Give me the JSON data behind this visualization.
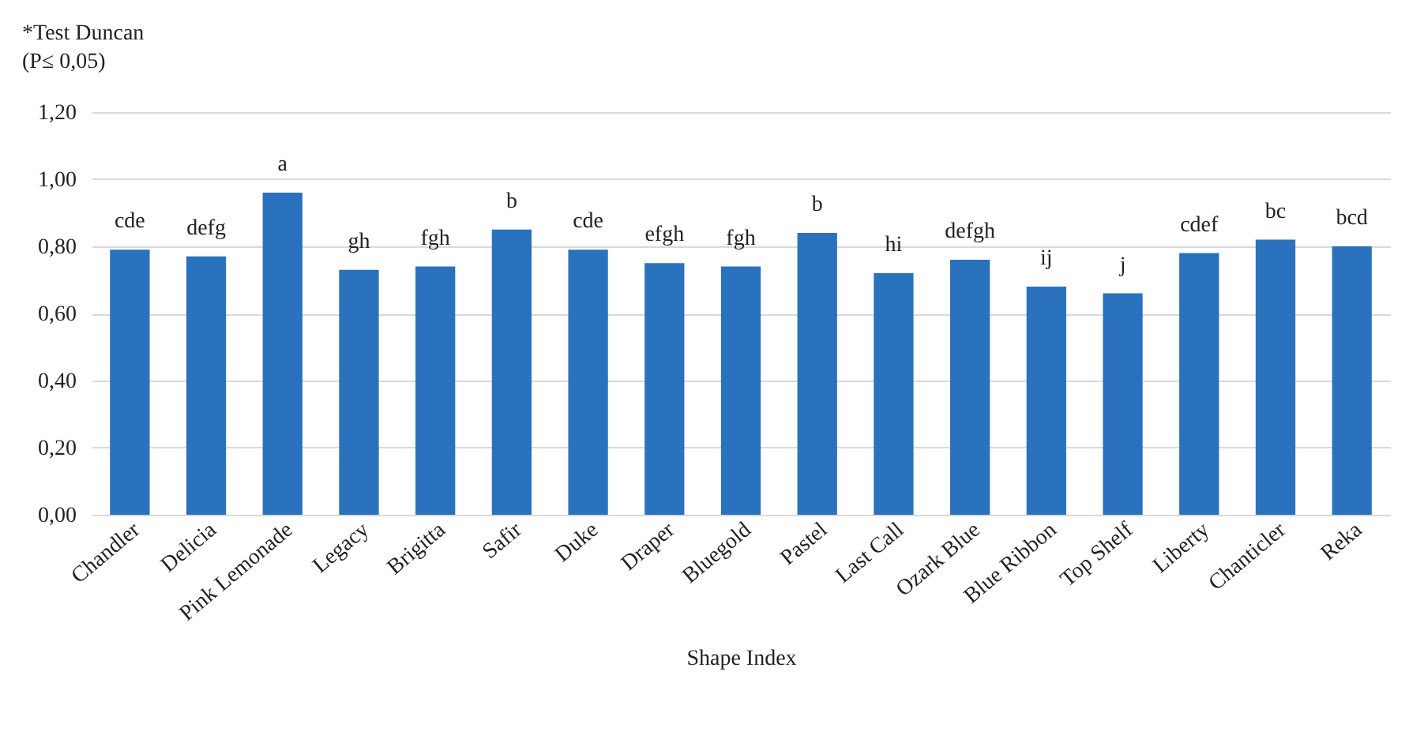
{
  "chart_data": {
    "type": "bar",
    "xlabel": "Shape Index",
    "annotations": [
      "*Test Duncan",
      "(P≤ 0,05)"
    ],
    "categories": [
      "Chandler",
      "Delicia",
      "Pink Lemonade",
      "Legacy",
      "Brigitta",
      "Safir",
      "Duke",
      "Draper",
      "Bluegold",
      "Pastel",
      "Last Call",
      "Ozark Blue",
      "Blue Ribbon",
      "Top Shelf",
      "Liberty",
      "Chanticler",
      "Reka"
    ],
    "values": [
      0.79,
      0.77,
      0.96,
      0.73,
      0.74,
      0.85,
      0.79,
      0.75,
      0.74,
      0.84,
      0.72,
      0.76,
      0.68,
      0.66,
      0.78,
      0.82,
      0.8
    ],
    "value_labels": [
      "cde",
      "defg",
      "a",
      "gh",
      "fgh",
      "b",
      "cde",
      "efgh",
      "fgh",
      "b",
      "hi",
      "defgh",
      "ij",
      "j",
      "cdef",
      "bc",
      "bcd"
    ],
    "color": "#2a72bd",
    "ylim": [
      0,
      1.2
    ],
    "yticks": [
      {
        "value": 0,
        "label": "0,00"
      },
      {
        "value": 0.2,
        "label": "0,20"
      },
      {
        "value": 0.4,
        "label": "0,40"
      },
      {
        "value": 0.6,
        "label": "0,60"
      },
      {
        "value": 0.8,
        "label": "0,80"
      },
      {
        "value": 1.0,
        "label": "1,00"
      },
      {
        "value": 1.2,
        "label": "1,20"
      }
    ],
    "grid": "y"
  }
}
